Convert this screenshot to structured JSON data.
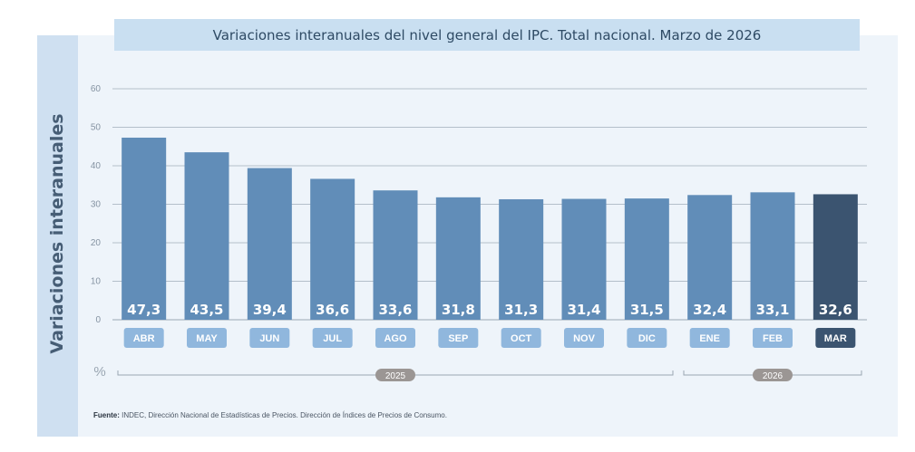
{
  "chart_data": {
    "type": "bar",
    "title": "Variaciones interanuales del nivel general del IPC. Total nacional. Marzo de 2026",
    "ylabel": "Variaciones interanuales",
    "y_unit_label": "%",
    "ylim": [
      0,
      60
    ],
    "yticks": [
      0,
      10,
      20,
      30,
      40,
      50,
      60
    ],
    "grid": true,
    "categories": [
      "ABR",
      "MAY",
      "JUN",
      "JUL",
      "AGO",
      "SEP",
      "OCT",
      "NOV",
      "DIC",
      "ENE",
      "FEB",
      "MAR"
    ],
    "values": [
      47.3,
      43.5,
      39.4,
      36.6,
      33.6,
      31.8,
      31.3,
      31.4,
      31.5,
      32.4,
      33.1,
      32.6
    ],
    "value_labels": [
      "47,3",
      "43,5",
      "39,4",
      "36,6",
      "33,6",
      "31,8",
      "31,3",
      "31,4",
      "31,5",
      "32,4",
      "33,1",
      "32,6"
    ],
    "highlight_category": "MAR",
    "year_groups": [
      {
        "label": "2025",
        "from": "ABR",
        "to": "DIC"
      },
      {
        "label": "2026",
        "from": "ENE",
        "to": "MAR"
      }
    ]
  },
  "colors": {
    "bar": "#618db8",
    "bar_highlight": "#3b5470",
    "cat_box": "#90b7dd",
    "year_pill": "#9b9694"
  },
  "source": {
    "label": "Fuente:",
    "text": " INDEC, Dirección Nacional de Estadísticas de Precios. Dirección de Índices de Precios de Consumo."
  }
}
